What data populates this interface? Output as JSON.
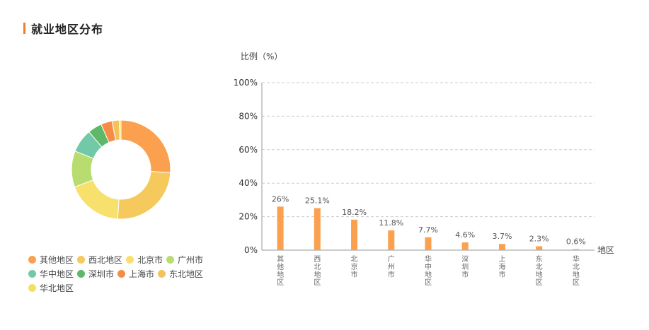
{
  "header": {
    "title": "就业地区分布"
  },
  "colors": {
    "accent": "#f07d2a",
    "bar": "#fba04f",
    "grid": "#cccccc",
    "axis": "#999999"
  },
  "chart_data": [
    {
      "type": "pie",
      "legend_position": "bottom",
      "slices": [
        {
          "label": "其他地区",
          "value": 26,
          "color": "#fba04f"
        },
        {
          "label": "西北地区",
          "value": 25.1,
          "color": "#f5c95c"
        },
        {
          "label": "北京市",
          "value": 18.2,
          "color": "#f7e06b"
        },
        {
          "label": "广州市",
          "value": 11.8,
          "color": "#b9dc70"
        },
        {
          "label": "华中地区",
          "value": 7.7,
          "color": "#72c9a8"
        },
        {
          "label": "深圳市",
          "value": 4.6,
          "color": "#5fb86a"
        },
        {
          "label": "上海市",
          "value": 3.7,
          "color": "#f58d46"
        },
        {
          "label": "东北地区",
          "value": 2.3,
          "color": "#f3c35b"
        },
        {
          "label": "华北地区",
          "value": 0.6,
          "color": "#f5e061"
        }
      ]
    },
    {
      "type": "bar",
      "ylabel": "比例（%）",
      "xlabel": "地区",
      "ylim": [
        0,
        100
      ],
      "yticks": [
        "0%",
        "20%",
        "40%",
        "60%",
        "80%",
        "100%"
      ],
      "grid": true,
      "categories": [
        "其他地区",
        "西北地区",
        "北京市",
        "广州市",
        "华中地区",
        "深圳市",
        "上海市",
        "东北地区",
        "华北地区"
      ],
      "values": [
        26,
        25.1,
        18.2,
        11.8,
        7.7,
        4.6,
        3.7,
        2.3,
        0.6
      ],
      "value_labels": [
        "26%",
        "25.1%",
        "18.2%",
        "11.8%",
        "7.7%",
        "4.6%",
        "3.7%",
        "2.3%",
        "0.6%"
      ]
    }
  ]
}
